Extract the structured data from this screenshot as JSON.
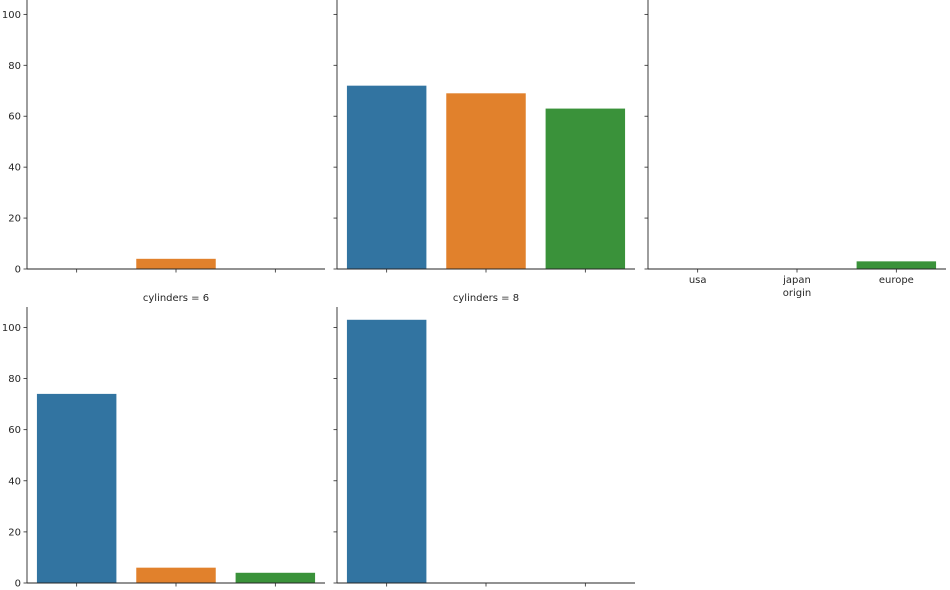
{
  "chart_data": [
    {
      "type": "bar",
      "title": "",
      "categories": [
        "usa",
        "japan",
        "europe"
      ],
      "values": [
        0,
        4,
        0
      ],
      "ylim": [
        0,
        108
      ],
      "yticks": [
        0,
        20,
        40,
        60,
        80,
        100
      ],
      "xlabel": "",
      "ylabel": "",
      "show_xticklabels": false,
      "show_yticklabels": true
    },
    {
      "type": "bar",
      "title": "",
      "categories": [
        "usa",
        "japan",
        "europe"
      ],
      "values": [
        72,
        69,
        63
      ],
      "ylim": [
        0,
        108
      ],
      "yticks": [
        0,
        20,
        40,
        60,
        80,
        100
      ],
      "xlabel": "",
      "ylabel": "",
      "show_xticklabels": false,
      "show_yticklabels": false
    },
    {
      "type": "bar",
      "title": "",
      "categories": [
        "usa",
        "japan",
        "europe"
      ],
      "values": [
        0,
        0,
        3
      ],
      "ylim": [
        0,
        108
      ],
      "yticks": [
        0,
        20,
        40,
        60,
        80,
        100
      ],
      "xlabel": "origin",
      "ylabel": "",
      "show_xticklabels": true,
      "show_yticklabels": false
    },
    {
      "type": "bar",
      "title": "cylinders = 6",
      "categories": [
        "usa",
        "japan",
        "europe"
      ],
      "values": [
        74,
        6,
        4
      ],
      "ylim": [
        0,
        108
      ],
      "yticks": [
        0,
        20,
        40,
        60,
        80,
        100
      ],
      "xlabel": "",
      "ylabel": "",
      "show_xticklabels": false,
      "show_yticklabels": true
    },
    {
      "type": "bar",
      "title": "cylinders = 8",
      "categories": [
        "usa",
        "japan",
        "europe"
      ],
      "values": [
        103,
        0,
        0
      ],
      "ylim": [
        0,
        108
      ],
      "yticks": [
        0,
        20,
        40,
        60,
        80,
        100
      ],
      "xlabel": "",
      "ylabel": "",
      "show_xticklabels": false,
      "show_yticklabels": false
    }
  ],
  "colors": {
    "usa": "#3274a1",
    "japan": "#e1812c",
    "europe": "#3a923a",
    "axis": "#262626"
  }
}
